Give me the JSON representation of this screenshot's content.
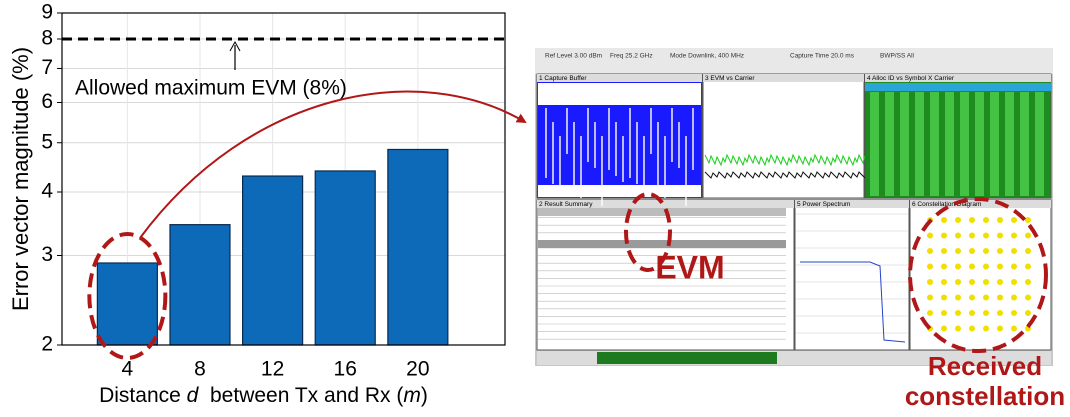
{
  "chart_data": {
    "type": "bar",
    "ylabel": "Error vector magnitude (%)",
    "xlabel_parts": [
      "Distance ",
      "d",
      "  between Tx and Rx (",
      "m",
      ")"
    ],
    "categories": [
      "4",
      "8",
      "12",
      "16",
      "20"
    ],
    "values": [
      2.9,
      3.45,
      4.3,
      4.4,
      4.85
    ],
    "color": "#0d6ab8",
    "ylim": [
      2,
      9
    ],
    "yticks": [
      2,
      3,
      4,
      5,
      6,
      7,
      8,
      9
    ],
    "log_y": true,
    "grid": true,
    "threshold": {
      "value": 8,
      "label": "Allowed maximum EVM (8%)"
    }
  },
  "screenshot": {
    "header": [
      "Ref Level 3.00 dBm",
      "Freq 25.2 GHz",
      "Mode Downlink, 400 MHz",
      "Capture Time 20.0 ms",
      "BWP/SS All"
    ],
    "panels": [
      "1 Capture Buffer",
      "3 EVM vs Carrier",
      "4 Alloc ID vs Symbol X Carrier",
      "2 Result Summary",
      "5 Power Spectrum",
      "6 Constellation Diagram"
    ],
    "evm": "EVM",
    "constellation": [
      "Received",
      "constellation"
    ]
  }
}
